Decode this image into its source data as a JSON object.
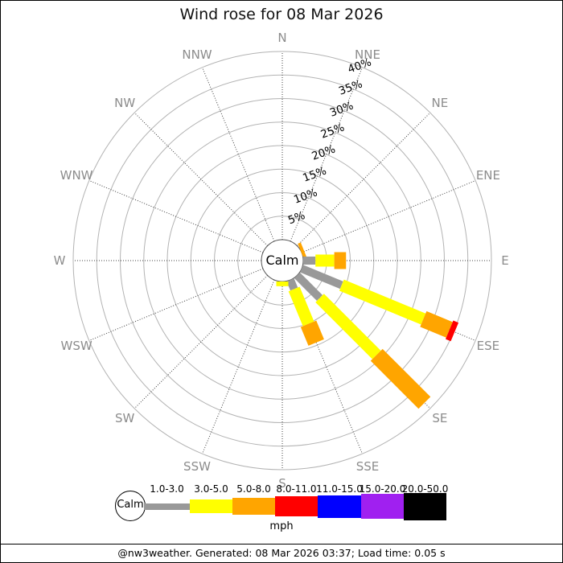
{
  "title": "Wind rose for 08 Mar 2026",
  "calm_label": "Calm",
  "units_label": "mph",
  "footer_text": "@nw3weather. Generated: 08 Mar 2026 03:37; Load time: 0.05 s",
  "colors": {
    "ring": "#b3b3b3",
    "spoke": "#404040",
    "compass_label": "#8c8c8c",
    "percent_label": "#000000",
    "calm_stroke": "#555555",
    "background": "#ffffff"
  },
  "compass_labels": [
    "N",
    "NNE",
    "NE",
    "ENE",
    "E",
    "ESE",
    "SE",
    "SSE",
    "S",
    "SSW",
    "SW",
    "WSW",
    "W",
    "WNW",
    "NW",
    "NNW"
  ],
  "ring_labels": [
    "5%",
    "10%",
    "15%",
    "20%",
    "25%",
    "30%",
    "35%",
    "40%"
  ],
  "speed_bins": [
    {
      "label": "1.0-3.0",
      "color": "#999999"
    },
    {
      "label": "3.0-5.0",
      "color": "#ffff00"
    },
    {
      "label": "5.0-8.0",
      "color": "#ffa500"
    },
    {
      "label": "8.0-11.0",
      "color": "#ff0000"
    },
    {
      "label": "11.0-15.0",
      "color": "#0000ff"
    },
    {
      "label": "15.0-20.0",
      "color": "#a020f0"
    },
    {
      "label": "20.0-50.0",
      "color": "#000000"
    }
  ],
  "chart_data": {
    "type": "windrose",
    "title": "Wind rose for 08 Mar 2026",
    "units": "mph",
    "ring_percent_step": 5,
    "ring_percent_max": 40,
    "grid": true,
    "directions": [
      "N",
      "NNE",
      "NE",
      "ENE",
      "E",
      "ESE",
      "SE",
      "SSE",
      "S",
      "SSW",
      "SW",
      "WSW",
      "W",
      "WNW",
      "NW",
      "NNW"
    ],
    "series": [
      {
        "direction": "NE",
        "style": "thin-sliver",
        "segments": [
          {
            "bin": "5.0-8.0",
            "percent": 0.5
          }
        ]
      },
      {
        "direction": "E",
        "segments": [
          {
            "bin": "1.0-3.0",
            "percent": 2.6
          },
          {
            "bin": "3.0-5.0",
            "percent": 4.0
          },
          {
            "bin": "5.0-8.0",
            "percent": 2.5
          }
        ]
      },
      {
        "direction": "ESE",
        "segments": [
          {
            "bin": "1.0-3.0",
            "percent": 9.2
          },
          {
            "bin": "3.0-5.0",
            "percent": 18.8
          },
          {
            "bin": "5.0-8.0",
            "percent": 6.0
          },
          {
            "bin": "8.0-11.0",
            "percent": 1.2
          }
        ]
      },
      {
        "direction": "SE",
        "segments": [
          {
            "bin": "1.0-3.0",
            "percent": 6.8
          },
          {
            "bin": "3.0-5.0",
            "percent": 17.1
          },
          {
            "bin": "5.0-8.0",
            "percent": 14.4
          }
        ]
      },
      {
        "direction": "SSE",
        "segments": [
          {
            "bin": "1.0-3.0",
            "percent": 2.1
          },
          {
            "bin": "3.0-5.0",
            "percent": 8.0
          },
          {
            "bin": "5.0-8.0",
            "percent": 4.3
          }
        ]
      },
      {
        "direction": "S",
        "segments": [
          {
            "bin": "3.0-5.0",
            "percent": 1.0
          }
        ]
      }
    ]
  }
}
